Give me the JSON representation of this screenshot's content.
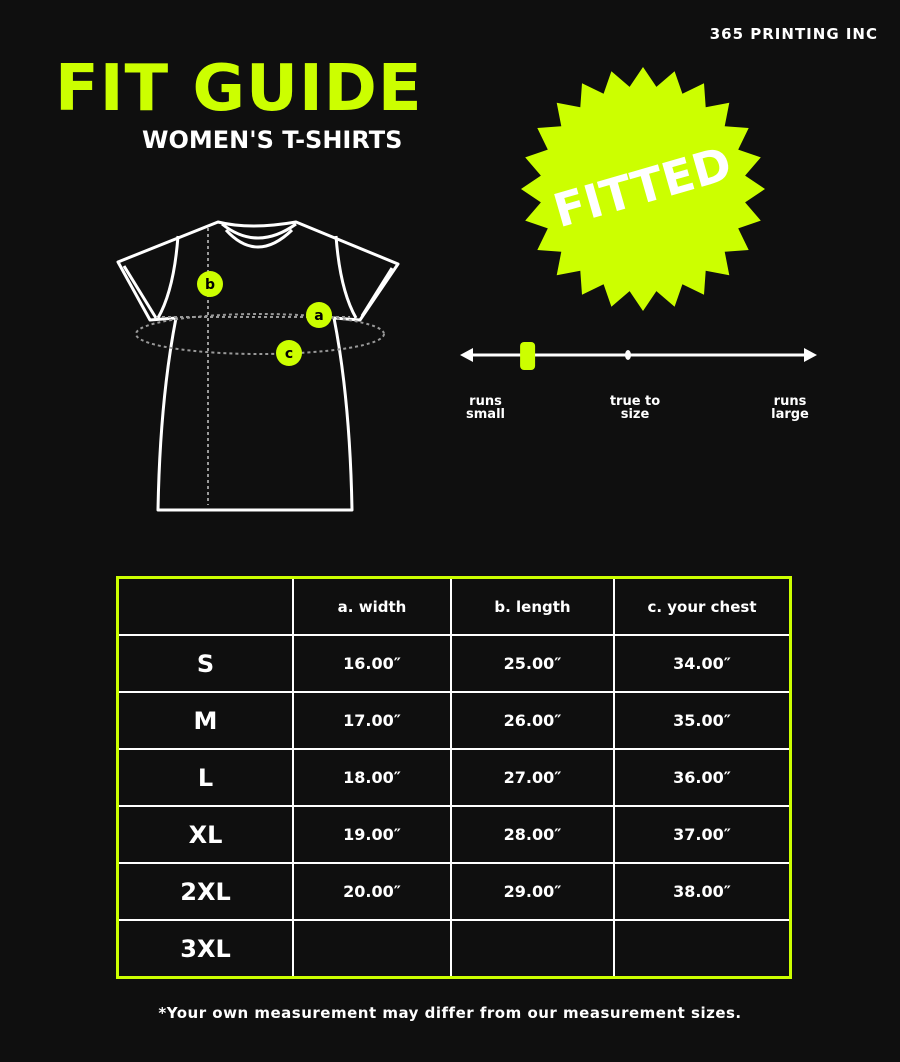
{
  "brand": "365 PRINTING INC",
  "title": "FIT GUIDE",
  "subtitle": "WOMEN'S T-SHIRTS",
  "badge": "FITTED",
  "accent_color": "#ccff00",
  "diagram_labels": {
    "width": "a",
    "length": "b",
    "chest": "c"
  },
  "fit_scale": {
    "labels": [
      "runs small",
      "true to size",
      "runs large"
    ],
    "position_fraction": 0.18
  },
  "table": {
    "headers": [
      "",
      "a. width",
      "b. length",
      "c. your chest"
    ],
    "rows": [
      [
        "S",
        "16.00″",
        "25.00″",
        "34.00″"
      ],
      [
        "M",
        "17.00″",
        "26.00″",
        "35.00″"
      ],
      [
        "L",
        "18.00″",
        "27.00″",
        "36.00″"
      ],
      [
        "XL",
        "19.00″",
        "28.00″",
        "37.00″"
      ],
      [
        "2XL",
        "20.00″",
        "29.00″",
        "38.00″"
      ],
      [
        "3XL",
        "",
        "",
        ""
      ]
    ]
  },
  "note": "*Your own measurement may differ from our measurement sizes."
}
